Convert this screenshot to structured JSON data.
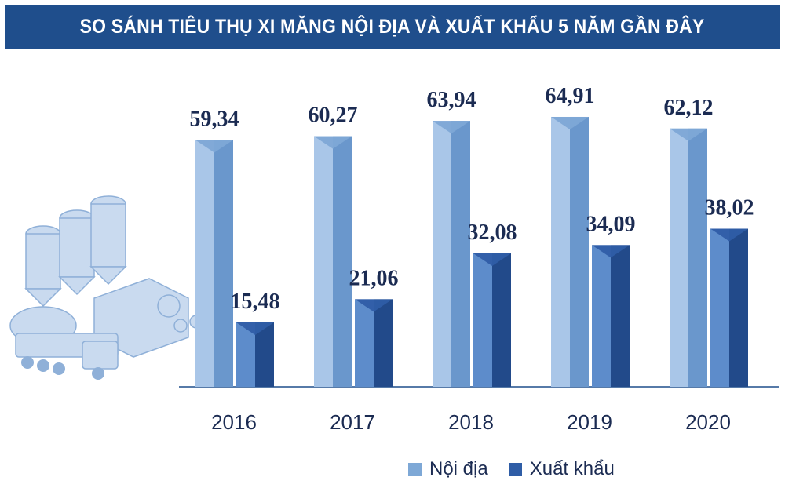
{
  "title": "SO SÁNH TIÊU THỤ XI MĂNG NỘI ĐỊA VÀ XUẤT KHẨU 5 NĂM GẦN ĐÂY",
  "colors": {
    "title_bg": "#1f4e8c",
    "domestic": "#7ea8d6",
    "export": "#2f5da6",
    "label_text": "#1b2b52"
  },
  "chart_data": {
    "type": "bar",
    "title": "SO SÁNH TIÊU THỤ XI MĂNG NỘI ĐỊA VÀ XUẤT KHẨU 5 NĂM GẦN ĐÂY",
    "categories": [
      "2016",
      "2017",
      "2018",
      "2019",
      "2020"
    ],
    "series": [
      {
        "name": "Nội địa",
        "values": [
          59.34,
          60.27,
          63.94,
          64.91,
          62.12
        ],
        "labels": [
          "59,34",
          "60,27",
          "63,94",
          "64,91",
          "62,12"
        ]
      },
      {
        "name": "Xuất khẩu",
        "values": [
          15.48,
          21.06,
          32.08,
          34.09,
          38.02
        ],
        "labels": [
          "15,48",
          "21,06",
          "32,08",
          "34,09",
          "38,02"
        ]
      }
    ],
    "ylim": [
      0,
      70
    ],
    "grid": false,
    "legend_position": "bottom"
  }
}
